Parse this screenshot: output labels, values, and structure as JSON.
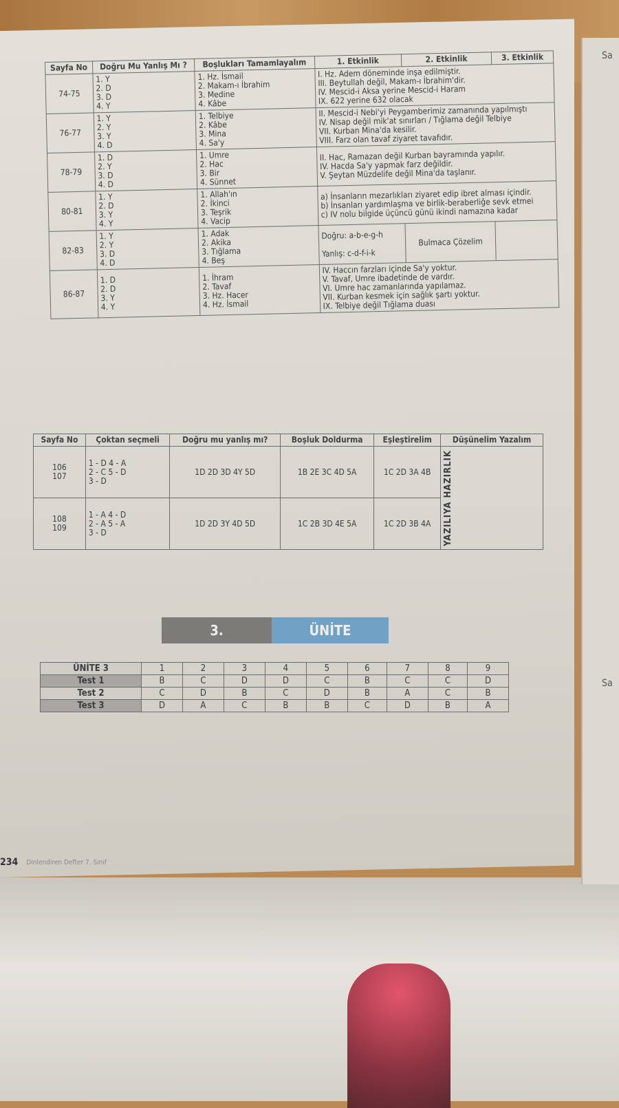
{
  "table1": {
    "headers": [
      "Sayfa No",
      "Doğru Mu Yanlış Mı ?",
      "Boşlukları Tamamlayalım",
      "1. Etkinlik",
      "2. Etkinlik",
      "3. Etkinlik"
    ],
    "rows": [
      {
        "page": "74-75",
        "dy": "1. Y\n2. D\n3. D\n4. Y",
        "blanks": "1. Hz. İsmail\n2. Makam-ı İbrahim\n3. Medine\n4. Kâbe",
        "activity": "I. Hz. Adem döneminde inşa edilmiştir.\nIII. Beytullah değil, Makam-ı İbrahim'dir.\nIV. Mescid-i Aksa yerine Mescid-i Haram\nIX. 622 yerine 632 olacak"
      },
      {
        "page": "76-77",
        "dy": "1. Y\n2. Y\n3. Y\n4. D",
        "blanks": "1. Telbiye\n2. Kâbe\n3. Mina\n4. Sa'y",
        "activity": "II. Mescid-i Nebi'yi Peygamberimiz zamanında yapılmıştı\nIV. Nisap değil mik'at sınırları / Tığlama değil Telbiye\nVII. Kurban Mina'da kesilir.\nVIII. Farz olan tavaf ziyaret tavafıdır."
      },
      {
        "page": "78-79",
        "dy": "1. D\n2. Y\n3. D\n4. D",
        "blanks": "1. Umre\n2. Hac\n3. Bir\n4. Sünnet",
        "activity": "II. Hac, Ramazan değil Kurban bayramında yapılır.\nIV. Hacda Sa'y yapmak farz değildir.\nV. Şeytan Müzdelife değil Mina'da taşlanır."
      },
      {
        "page": "80-81",
        "dy": "1. Y\n2. D\n3. Y\n4. Y",
        "blanks": "1. Allah'ın\n2. İkinci\n3. Teşrik\n4. Vacip",
        "activity": "a) İnsanların mezarlıkları ziyaret edip ibret alması içindir.\nb) İnsanları yardımlaşma ve birlik-beraberliğe sevk etmei\nc) IV nolu bilgide üçüncü günü ikindi namazına kadar"
      },
      {
        "page": "82-83",
        "dy": "1. Y\n2. Y\n3. D\n4. D",
        "blanks": "1. Adak\n2. Akika\n3. Tığlama\n4. Beş",
        "activity": "Doğru: a-b-e-g-h\n\nYanlış: c-d-f-i-k",
        "activity2": "Bulmaca Çözelim"
      },
      {
        "page": "86-87",
        "dy": "1. D\n2. D\n3. Y\n4. Y",
        "blanks": "1. İhram\n2. Tavaf\n3. Hz. Hacer\n4. Hz. İsmail",
        "activity": "IV. Haccın farzları içinde Sa'y yoktur.\nV. Tavaf, Umre ibadetinde de vardır.\nVI. Umre hac zamanlarında yapılamaz.\nVII. Kurban kesmek için sağlık şartı yoktur.\nIX. Telbiye değil Tığlama duası"
      }
    ]
  },
  "table2": {
    "headers": [
      "Sayfa No",
      "Çoktan seçmeli",
      "Doğru mu yanlış mı?",
      "Boşluk Doldurma",
      "Eşleştirelim",
      "Düşünelim Yazalım"
    ],
    "rows": [
      {
        "page": "106\n107",
        "mc": "1 - D    4 - A\n2 - C    5 - D\n3 - D",
        "dy": "1D 2D 3D 4Y 5D",
        "fill": "1B 2E 3C 4D 5A",
        "match": "1C 2D 3A 4B"
      },
      {
        "page": "108\n109",
        "mc": "1 - A    4 - D\n2 - A    5 - A\n3 - D",
        "dy": "1D 2D 3Y 4D 5D",
        "fill": "1C 2B 3D 4E 5A",
        "match": "1C 2D 3B 4A"
      }
    ],
    "merged": "YAZILIYA HAZIRLIK"
  },
  "unit_banner": {
    "number": "3.",
    "label": "ÜNİTE",
    "colors": {
      "number_bg": "#7d7b78",
      "label_bg": "#6fa2c4"
    }
  },
  "table3": {
    "title": "ÜNİTE 3",
    "columns": [
      "1",
      "2",
      "3",
      "4",
      "5",
      "6",
      "7",
      "8",
      "9"
    ],
    "rows": [
      {
        "label": "Test 1",
        "answers": [
          "B",
          "C",
          "D",
          "D",
          "C",
          "B",
          "C",
          "C",
          "D"
        ]
      },
      {
        "label": "Test 2",
        "answers": [
          "C",
          "D",
          "B",
          "C",
          "D",
          "B",
          "A",
          "C",
          "B"
        ]
      },
      {
        "label": "Test 3",
        "answers": [
          "D",
          "A",
          "C",
          "B",
          "B",
          "C",
          "D",
          "B",
          "A"
        ]
      }
    ]
  },
  "footer": {
    "page_number": "234",
    "book": "Dinlendiren Defter 7. Sınıf"
  },
  "right_page": {
    "fragment": "Sa"
  }
}
